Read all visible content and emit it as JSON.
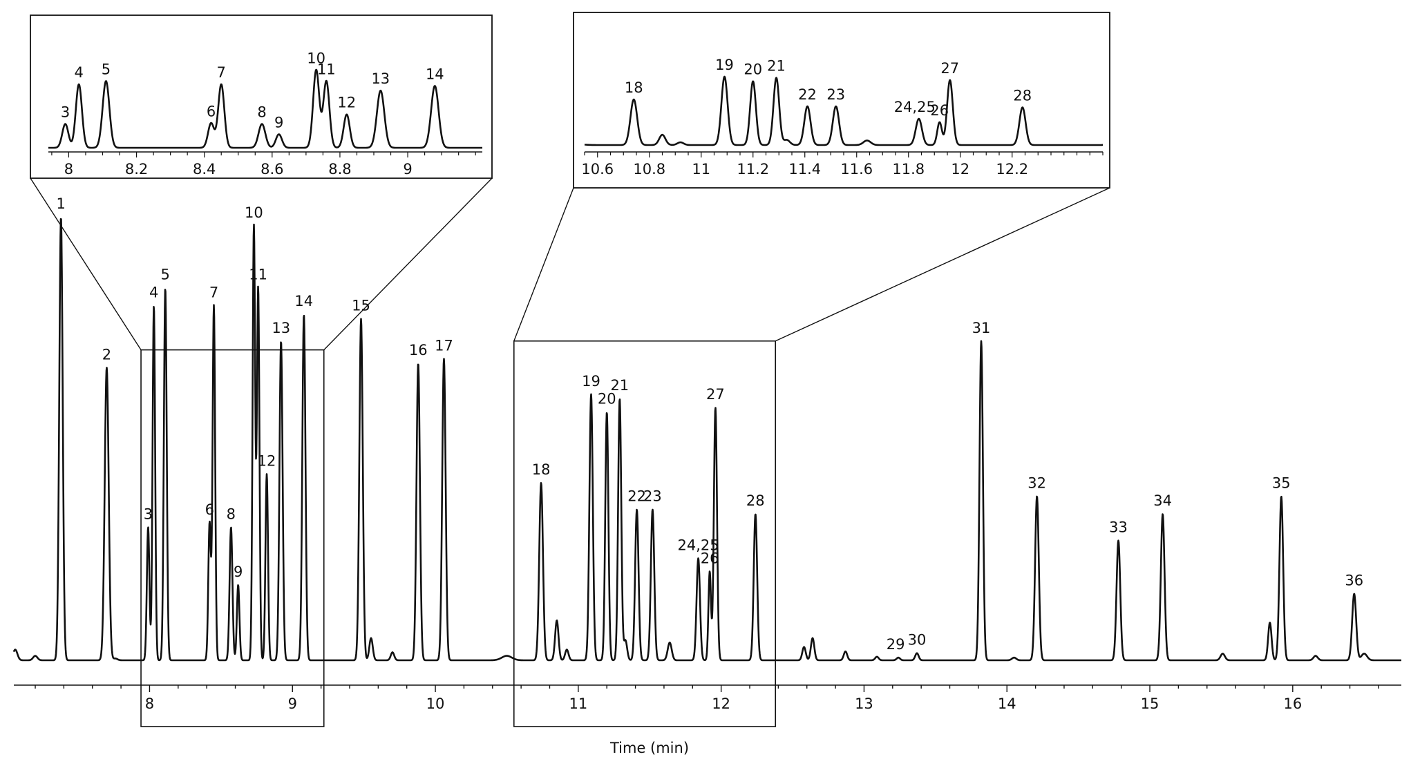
{
  "chart_data": {
    "type": "line",
    "title": "",
    "xlabel": "Time (min)",
    "ylabel": "",
    "xlim": [
      7.05,
      16.76
    ],
    "ylim": [
      0,
      100
    ],
    "grid": false,
    "legend": "none",
    "x_ticks": [
      8,
      9,
      10,
      11,
      12,
      13,
      14,
      15,
      16
    ],
    "line_color": "#111111",
    "peaks": [
      {
        "label": "1",
        "x": 7.38,
        "y": 100,
        "w": 0.012
      },
      {
        "label": "2",
        "x": 7.7,
        "y": 66,
        "w": 0.014
      },
      {
        "label": "3",
        "x": 7.99,
        "y": 30,
        "w": 0.009
      },
      {
        "label": "4",
        "x": 8.03,
        "y": 80,
        "w": 0.009
      },
      {
        "label": "5",
        "x": 8.11,
        "y": 84,
        "w": 0.01
      },
      {
        "label": "6",
        "x": 8.42,
        "y": 31,
        "w": 0.009
      },
      {
        "label": "7",
        "x": 8.45,
        "y": 80,
        "w": 0.009
      },
      {
        "label": "8",
        "x": 8.57,
        "y": 30,
        "w": 0.01
      },
      {
        "label": "9",
        "x": 8.62,
        "y": 17,
        "w": 0.009
      },
      {
        "label": "10",
        "x": 8.73,
        "y": 98,
        "w": 0.009
      },
      {
        "label": "11",
        "x": 8.76,
        "y": 84,
        "w": 0.009
      },
      {
        "label": "12",
        "x": 8.82,
        "y": 42,
        "w": 0.009
      },
      {
        "label": "13",
        "x": 8.92,
        "y": 72,
        "w": 0.011
      },
      {
        "label": "14",
        "x": 9.08,
        "y": 78,
        "w": 0.011
      },
      {
        "label": "15",
        "x": 9.48,
        "y": 77,
        "w": 0.012
      },
      {
        "label": "16",
        "x": 9.88,
        "y": 67,
        "w": 0.012
      },
      {
        "label": "17",
        "x": 10.06,
        "y": 68,
        "w": 0.012
      },
      {
        "label": "18",
        "x": 10.74,
        "y": 40,
        "w": 0.013
      },
      {
        "label": "19",
        "x": 11.09,
        "y": 60,
        "w": 0.012
      },
      {
        "label": "20",
        "x": 11.2,
        "y": 56,
        "w": 0.011
      },
      {
        "label": "21",
        "x": 11.29,
        "y": 59,
        "w": 0.011
      },
      {
        "label": "22",
        "x": 11.41,
        "y": 34,
        "w": 0.012
      },
      {
        "label": "23",
        "x": 11.52,
        "y": 34,
        "w": 0.012
      },
      {
        "label": "24,25",
        "x": 11.84,
        "y": 23,
        "w": 0.012
      },
      {
        "label": "26",
        "x": 11.92,
        "y": 20,
        "w": 0.009
      },
      {
        "label": "27",
        "x": 11.96,
        "y": 57,
        "w": 0.011
      },
      {
        "label": "28",
        "x": 12.24,
        "y": 33,
        "w": 0.012
      },
      {
        "label": "29",
        "x": 13.24,
        "y": 0.6,
        "w": 0.012
      },
      {
        "label": "30",
        "x": 13.37,
        "y": 1.6,
        "w": 0.012
      },
      {
        "label": "31",
        "x": 13.82,
        "y": 72,
        "w": 0.012
      },
      {
        "label": "32",
        "x": 14.21,
        "y": 37,
        "w": 0.013
      },
      {
        "label": "33",
        "x": 14.78,
        "y": 27,
        "w": 0.013
      },
      {
        "label": "34",
        "x": 15.09,
        "y": 33,
        "w": 0.013
      },
      {
        "label": "35",
        "x": 15.92,
        "y": 37,
        "w": 0.013
      },
      {
        "label": "36",
        "x": 16.43,
        "y": 15,
        "w": 0.014
      }
    ],
    "minor_peaks": [
      {
        "x": 7.06,
        "y": 2.4,
        "w": 0.015
      },
      {
        "x": 7.2,
        "y": 1.0,
        "w": 0.015
      },
      {
        "x": 7.76,
        "y": 0.4,
        "w": 0.015
      },
      {
        "x": 9.55,
        "y": 5.0,
        "w": 0.012
      },
      {
        "x": 9.7,
        "y": 1.8,
        "w": 0.012
      },
      {
        "x": 10.5,
        "y": 1.0,
        "w": 0.035
      },
      {
        "x": 10.85,
        "y": 9.0,
        "w": 0.012
      },
      {
        "x": 10.92,
        "y": 2.4,
        "w": 0.012
      },
      {
        "x": 11.33,
        "y": 4.5,
        "w": 0.012
      },
      {
        "x": 11.64,
        "y": 4.0,
        "w": 0.014
      },
      {
        "x": 12.58,
        "y": 3.0,
        "w": 0.012
      },
      {
        "x": 12.64,
        "y": 5.0,
        "w": 0.012
      },
      {
        "x": 12.87,
        "y": 2.0,
        "w": 0.012
      },
      {
        "x": 13.09,
        "y": 0.8,
        "w": 0.012
      },
      {
        "x": 14.05,
        "y": 0.6,
        "w": 0.015
      },
      {
        "x": 15.51,
        "y": 1.5,
        "w": 0.015
      },
      {
        "x": 15.84,
        "y": 8.5,
        "w": 0.012
      },
      {
        "x": 16.16,
        "y": 1.0,
        "w": 0.015
      },
      {
        "x": 16.5,
        "y": 1.5,
        "w": 0.02
      }
    ],
    "insets": [
      {
        "name": "inset-1",
        "xlim": [
          7.94,
          9.22
        ],
        "x_ticks": [
          8,
          8.2,
          8.4,
          8.6,
          8.8,
          9
        ],
        "x_tick_labels": [
          "8",
          "8.2",
          "8.4",
          "8.6",
          "8.8",
          "9"
        ],
        "zoom_region": [
          7.94,
          9.22
        ],
        "zoom_region_top": 70,
        "peak_scale": 115
      },
      {
        "name": "inset-2",
        "xlim": [
          10.55,
          12.55
        ],
        "x_ticks": [
          10.6,
          10.8,
          11,
          11.2,
          11.4,
          11.6,
          11.8,
          12,
          12.2
        ],
        "x_tick_labels": [
          "10.6",
          "10.8",
          "11",
          "11.2",
          "11.4",
          "11.6",
          "11.8",
          "12",
          "12.2"
        ],
        "zoom_region": [
          10.55,
          12.38
        ],
        "zoom_region_top": 72,
        "peak_scale": 165
      }
    ]
  }
}
